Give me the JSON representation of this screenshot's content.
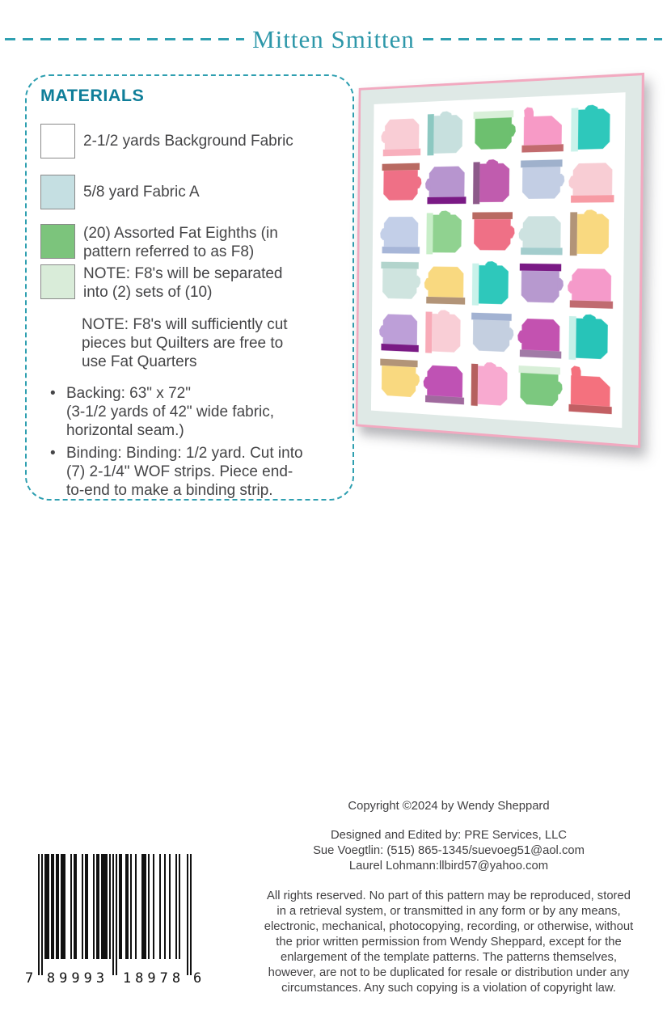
{
  "accent": {
    "teal_dash": "#2E9FB0",
    "heading_teal": "#0F7E99",
    "title_teal": "#2D97A9",
    "text_gray": "#454547"
  },
  "header": {
    "title": "Mitten Smitten"
  },
  "materials": {
    "heading": "MATERIALS",
    "swatch_items": [
      {
        "swatch_color": "#FFFFFF",
        "label": "2-1/2 yards Background Fabric"
      },
      {
        "swatch_color": "#C5DFE2",
        "label": "5/8 yard Fabric A"
      },
      {
        "swatch_color": "#7CC47C",
        "label": "(20) Assorted Fat Eighths (in\npattern referred to as F8)"
      },
      {
        "swatch_color": "#D9ECD9",
        "label": "NOTE: F8's will be separated\ninto (2) sets of (10)"
      }
    ],
    "note": "NOTE: F8's will sufficiently cut\npieces but Quilters are free to\nuse Fat Quarters",
    "bullet_symbol": "•",
    "bullets": [
      "Backing: 63\" x 72\"\n(3-1/2 yards of 42\" wide fabric,\nhorizontal seam.)",
      "Binding: Binding: 1/2 yard. Cut into\n(7) 2-1/4\" WOF strips. Piece end-\nto-end to make a binding strip."
    ]
  },
  "quilt": {
    "border_color": "#F2A9C0",
    "sashing_color": "#DFE9E6",
    "field_color": "#FFFFFF",
    "rows": 6,
    "cols": 5,
    "mittens": [
      {
        "body": "#F9CDD5",
        "cuff": "#F8AFBC",
        "dir": "up",
        "style": "droop"
      },
      {
        "body": "#C7E0DE",
        "cuff": "#8CC8C1",
        "dir": "right",
        "style": "droop"
      },
      {
        "body": "#6DC06F",
        "cuff": "#D9F0D9",
        "dir": "down",
        "style": "droop"
      },
      {
        "body": "#F79AC6",
        "cuff": "#C26B6E",
        "dir": "up",
        "style": "erect"
      },
      {
        "body": "#2EC8BB",
        "cuff": "#C9F2EA",
        "dir": "right",
        "style": "droop"
      },
      {
        "body": "#EF7086",
        "cuff": "#B96A62",
        "dir": "down",
        "style": "droop"
      },
      {
        "body": "#B795CF",
        "cuff": "#7A1A85",
        "dir": "up",
        "style": "droop"
      },
      {
        "body": "#C05CAE",
        "cuff": "#8D5A8A",
        "dir": "right",
        "style": "droop"
      },
      {
        "body": "#C3CEE4",
        "cuff": "#9FB1CC",
        "dir": "down",
        "style": "droop"
      },
      {
        "body": "#F8CDD4",
        "cuff": "#F79BA4",
        "dir": "up",
        "style": "droop"
      },
      {
        "body": "#C3CFE8",
        "cuff": "#A7B6D8",
        "dir": "up",
        "style": "droop"
      },
      {
        "body": "#90D290",
        "cuff": "#C8EEC8",
        "dir": "right",
        "style": "droop"
      },
      {
        "body": "#EF7086",
        "cuff": "#B96A62",
        "dir": "down",
        "style": "droop"
      },
      {
        "body": "#CDE2E0",
        "cuff": "#A3CDCD",
        "dir": "up",
        "style": "droop"
      },
      {
        "body": "#F9D980",
        "cuff": "#B29478",
        "dir": "right",
        "style": "droop"
      },
      {
        "body": "#CFE4DF",
        "cuff": "#B2D4CC",
        "dir": "down",
        "style": "droop"
      },
      {
        "body": "#F9D980",
        "cuff": "#B29478",
        "dir": "up",
        "style": "droop"
      },
      {
        "body": "#2EC8BB",
        "cuff": "#C9F2EA",
        "dir": "right",
        "style": "droop"
      },
      {
        "body": "#B799CF",
        "cuff": "#7A1A85",
        "dir": "down",
        "style": "droop"
      },
      {
        "body": "#F59ACA",
        "cuff": "#C06B70",
        "dir": "up",
        "style": "droop"
      },
      {
        "body": "#BD9FD8",
        "cuff": "#7A1A85",
        "dir": "up",
        "style": "droop"
      },
      {
        "body": "#F9CED6",
        "cuff": "#F8ABB8",
        "dir": "right",
        "style": "droop"
      },
      {
        "body": "#C4CFE0",
        "cuff": "#A2B2D2",
        "dir": "down",
        "style": "droop"
      },
      {
        "body": "#C352B0",
        "cuff": "#A17BA6",
        "dir": "up",
        "style": "droop"
      },
      {
        "body": "#27C4B8",
        "cuff": "#C6F0E8",
        "dir": "right",
        "style": "droop"
      },
      {
        "body": "#F9D980",
        "cuff": "#B29478",
        "dir": "down",
        "style": "droop"
      },
      {
        "body": "#BF52B4",
        "cuff": "#A06A9E",
        "dir": "up",
        "style": "droop"
      },
      {
        "body": "#F8AAD0",
        "cuff": "#B5605F",
        "dir": "right",
        "style": "droop"
      },
      {
        "body": "#7CC87F",
        "cuff": "#D8EFD8",
        "dir": "down",
        "style": "droop"
      },
      {
        "body": "#F4717E",
        "cuff": "#C25F63",
        "dir": "up",
        "style": "erect"
      }
    ]
  },
  "footer": {
    "copyright": "Copyright ©2024 by Wendy Sheppard",
    "credits": [
      "Designed and Edited by: PRE Services, LLC",
      "Sue Voegtlin: (515) 865-1345/suevoeg51@aol.com",
      "Laurel Lohmann:llbird57@yahoo.com"
    ],
    "legal": "All rights reserved. No part of this pattern may be reproduced, stored\nin a retrieval system, or transmitted in any form or by any means,\nelectronic, mechanical, photocopying, recording, or otherwise, without\nthe prior written permission from Wendy Sheppard, except for the\nenlargement of the template patterns. The patterns themselves,\nhowever, are not to be duplicated for resale or distribution under any\ncircumstances. Any such copying is a violation of copyright law."
  },
  "barcode": {
    "digits": "789993189786",
    "lead": "7",
    "group1": "89993",
    "group2": "18978",
    "trail": "6"
  }
}
